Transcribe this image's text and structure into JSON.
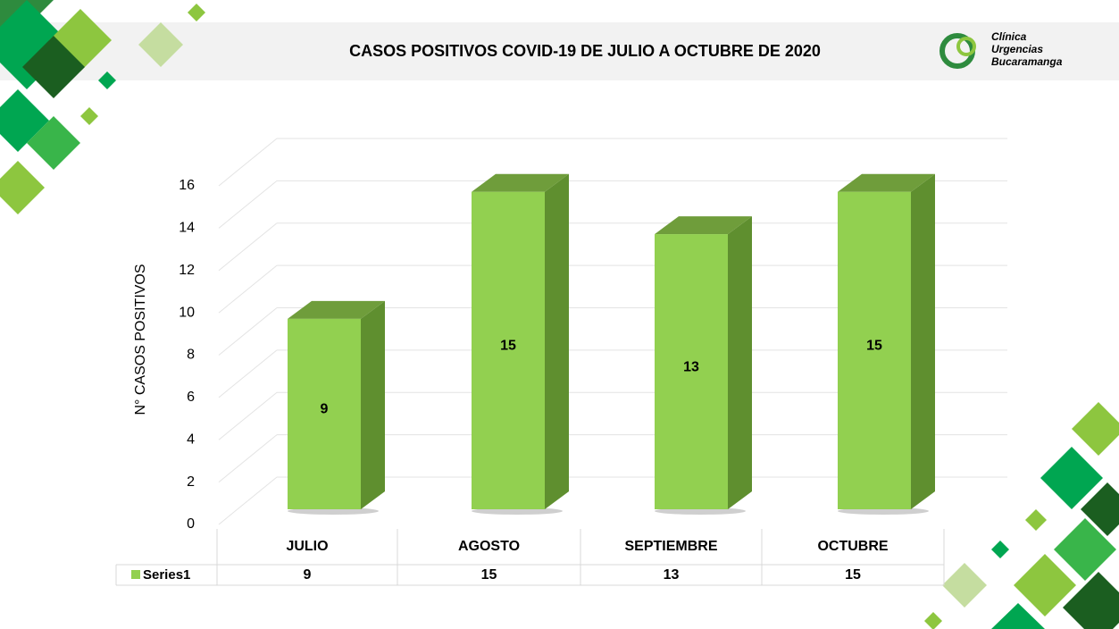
{
  "chart_data": {
    "type": "bar3d",
    "title": "CASOS POSITIVOS COVID-19 DE JULIO A OCTUBRE DE 2020",
    "y_label": "N° CASOS POSITIVOS",
    "categories": [
      "JULIO",
      "AGOSTO",
      "SEPTIEMBRE",
      "OCTUBRE"
    ],
    "series": [
      {
        "name": "Series1",
        "color": "#92d050",
        "values": [
          9,
          15,
          13,
          15
        ]
      }
    ],
    "ylim": [
      0,
      16
    ],
    "yticks": [
      0,
      2,
      4,
      6,
      8,
      10,
      12,
      14,
      16
    ],
    "grid": true
  },
  "logo": {
    "lines": [
      "Clínica",
      "Urgencias",
      "Bucaramanga"
    ]
  }
}
